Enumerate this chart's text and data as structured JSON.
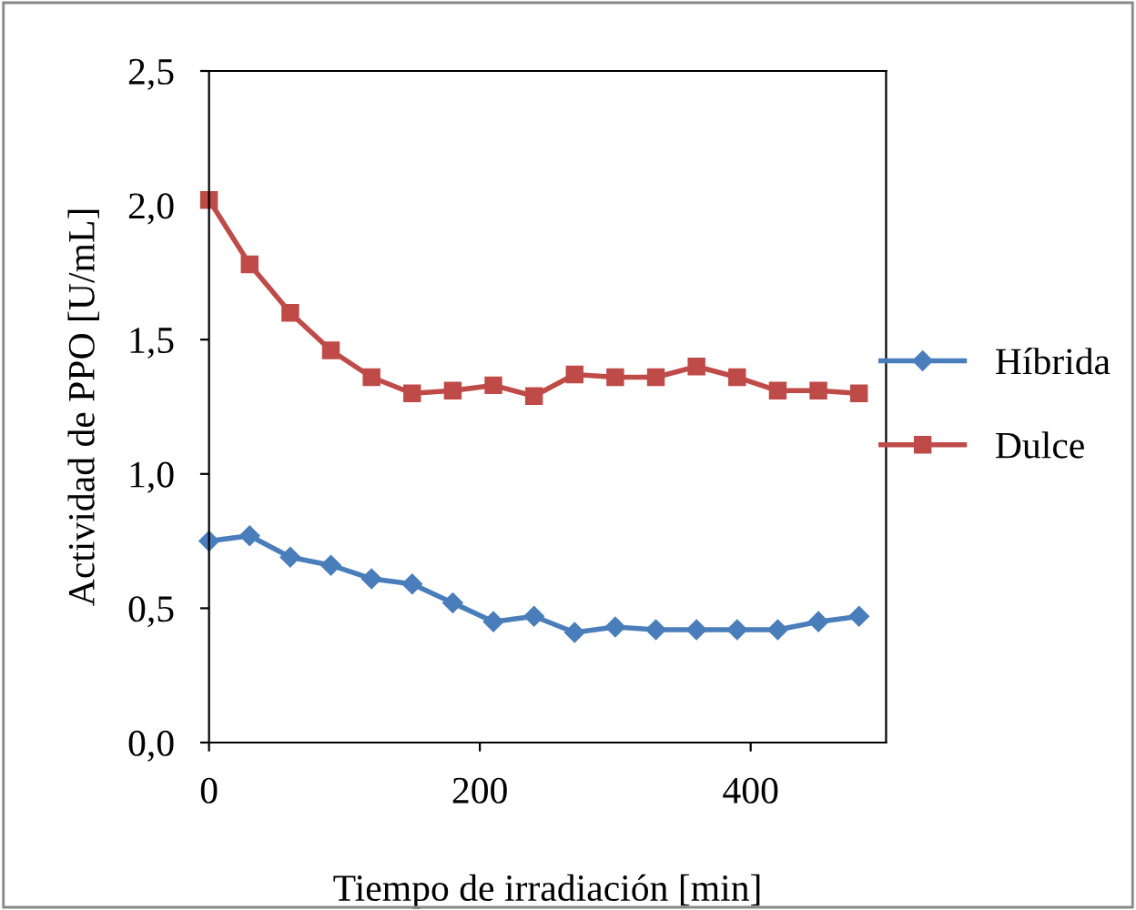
{
  "chart_data": {
    "type": "line",
    "xlabel": "Tiempo de irradiación [min]",
    "ylabel": "Actividad de PPO [U/mL]",
    "x": [
      0,
      30,
      60,
      90,
      120,
      150,
      180,
      210,
      240,
      270,
      300,
      330,
      360,
      390,
      420,
      450,
      480
    ],
    "series": [
      {
        "name": "Híbrida",
        "color": "#4a7ebb",
        "marker": "diamond",
        "values": [
          0.75,
          0.77,
          0.69,
          0.66,
          0.61,
          0.59,
          0.52,
          0.45,
          0.47,
          0.41,
          0.43,
          0.42,
          0.42,
          0.42,
          0.42,
          0.45,
          0.47
        ]
      },
      {
        "name": "Dulce",
        "color": "#be4b48",
        "marker": "square",
        "values": [
          2.02,
          1.78,
          1.6,
          1.46,
          1.36,
          1.3,
          1.31,
          1.33,
          1.29,
          1.37,
          1.36,
          1.36,
          1.4,
          1.36,
          1.31,
          1.31,
          1.3
        ]
      }
    ],
    "xlim": [
      0,
      500
    ],
    "xticks": [
      0,
      200,
      400
    ],
    "ylim": [
      0,
      2.5
    ],
    "yticks": [
      {
        "value": 0,
        "label": "0,0"
      },
      {
        "value": 0.5,
        "label": "0,5"
      },
      {
        "value": 1.0,
        "label": "1,0"
      },
      {
        "value": 1.5,
        "label": "1,5"
      },
      {
        "value": 2.0,
        "label": "2,0"
      },
      {
        "value": 2.5,
        "label": "2,5"
      }
    ],
    "grid": false,
    "legend": "right",
    "line_style": "solid"
  }
}
